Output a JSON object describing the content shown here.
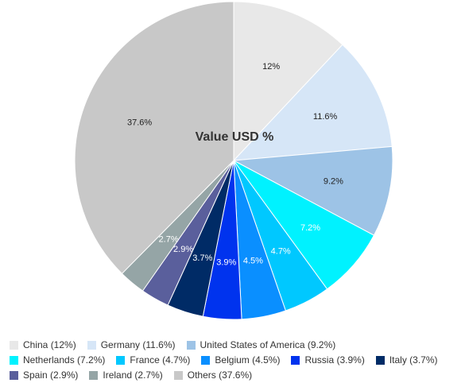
{
  "chart_data": {
    "type": "pie",
    "title": "Value USD %",
    "start_angle_deg": 0,
    "direction": "clockwise",
    "slices": [
      {
        "label": "China",
        "value": 12,
        "value_label": "12%",
        "legend": "China (12%)",
        "color": "#e8e8e8",
        "label_color": "#222222"
      },
      {
        "label": "Germany",
        "value": 11.6,
        "value_label": "11.6%",
        "legend": "Germany (11.6%)",
        "color": "#d6e6f7",
        "label_color": "#222222"
      },
      {
        "label": "United States of America",
        "value": 9.2,
        "value_label": "9.2%",
        "legend": "United States of America (9.2%)",
        "color": "#9dc3e6",
        "label_color": "#222222"
      },
      {
        "label": "Netherlands",
        "value": 7.2,
        "value_label": "7.2%",
        "legend": "Netherlands (7.2%)",
        "color": "#00f2ff",
        "label_color": "#ffffff"
      },
      {
        "label": "France",
        "value": 4.7,
        "value_label": "4.7%",
        "legend": "France (4.7%)",
        "color": "#00c8ff",
        "label_color": "#ffffff"
      },
      {
        "label": "Belgium",
        "value": 4.5,
        "value_label": "4.5%",
        "legend": "Belgium (4.5%)",
        "color": "#0a8fff",
        "label_color": "#ffffff"
      },
      {
        "label": "Russia",
        "value": 3.9,
        "value_label": "3.9%",
        "legend": "Russia (3.9%)",
        "color": "#0033ee",
        "label_color": "#ffffff"
      },
      {
        "label": "Italy",
        "value": 3.7,
        "value_label": "3.7%",
        "legend": "Italy (3.7%)",
        "color": "#002b66",
        "label_color": "#ffffff"
      },
      {
        "label": "Spain",
        "value": 2.9,
        "value_label": "2.9%",
        "legend": "Spain (2.9%)",
        "color": "#5a5f9c",
        "label_color": "#ffffff"
      },
      {
        "label": "Ireland",
        "value": 2.7,
        "value_label": "2.7%",
        "legend": "Ireland (2.7%)",
        "color": "#95a5a6",
        "label_color": "#ffffff"
      },
      {
        "label": "Others",
        "value": 37.6,
        "value_label": "37.6%",
        "legend": "Others (37.6%)",
        "color": "#c8c8c8",
        "label_color": "#222222"
      }
    ],
    "legend_rows": [
      [
        "China",
        "Germany",
        "United States of America"
      ],
      [
        "Netherlands",
        "France",
        "Belgium",
        "Russia",
        "Italy"
      ],
      [
        "Spain",
        "Ireland",
        "Others"
      ]
    ],
    "legend_position": "bottom"
  }
}
